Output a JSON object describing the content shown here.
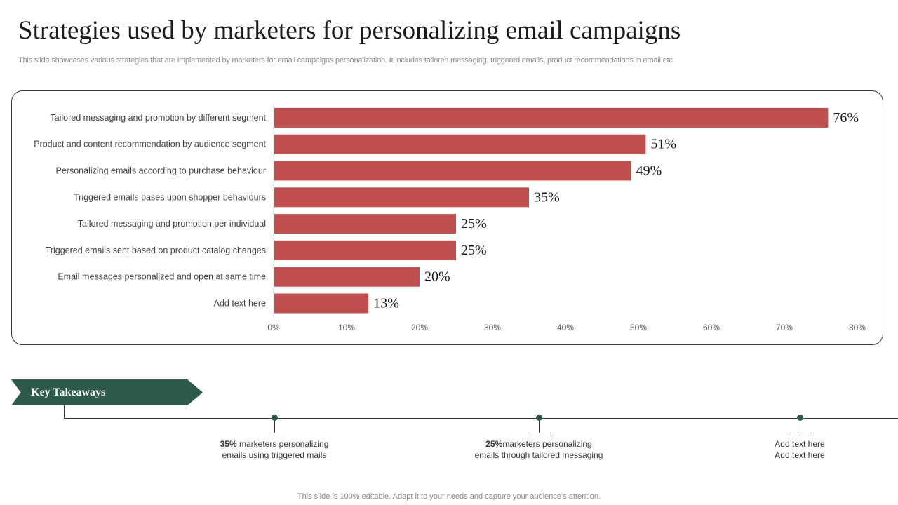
{
  "slide": {
    "title": "Strategies used by marketers for personalizing email campaigns",
    "subtitle": "This slide showcases various strategies that are implemented by marketers for email campaigns personalization. It includes tailored messaging, triggered emails, product recommendations in email etc",
    "footer": "This slide is 100% editable. Adapt it to your needs and capture your audience’s attention."
  },
  "colors": {
    "bar": "#c0504d",
    "accent": "#2e5a4b"
  },
  "chart_data": {
    "type": "bar",
    "orientation": "horizontal",
    "title": "",
    "xlabel": "",
    "ylabel": "",
    "categories": [
      "Tailored messaging and promotion by different segment",
      "Product and content recommendation by audience segment",
      "Personalizing emails according to purchase behaviour",
      "Triggered emails bases upon shopper behaviours",
      "Tailored messaging and promotion per individual",
      "Triggered emails sent based on product catalog changes",
      "Email messages personalized and open at same time",
      "Add text here"
    ],
    "values": [
      76,
      51,
      49,
      35,
      25,
      25,
      20,
      13
    ],
    "data_labels": [
      "76%",
      "51%",
      "49%",
      "35%",
      "25%",
      "25%",
      "20%",
      "13%"
    ],
    "xlim": [
      0,
      80
    ],
    "xticks": [
      0,
      10,
      20,
      30,
      40,
      50,
      60,
      70,
      80
    ],
    "xtick_labels": [
      "0%",
      "10%",
      "20%",
      "30%",
      "40%",
      "50%",
      "60%",
      "70%",
      "80%"
    ],
    "grid": false,
    "legend": "none"
  },
  "takeaways": {
    "heading": "Key Takeaways",
    "items": [
      {
        "bold": "35%",
        "text": " marketers personalizing",
        "line2": "emails using triggered mails"
      },
      {
        "bold": "25%",
        "text": "marketers personalizing",
        "line2": "emails through tailored messaging"
      },
      {
        "bold": "",
        "text": "Add text here",
        "line2": "Add text here"
      }
    ]
  }
}
